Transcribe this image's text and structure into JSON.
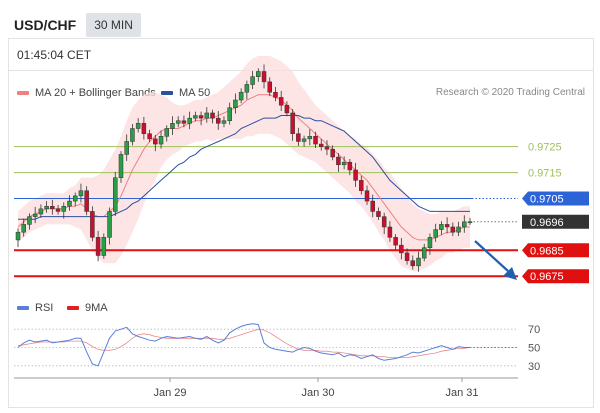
{
  "header": {
    "symbol": "USD/CHF",
    "timeframe": "30 MIN"
  },
  "panel": {
    "time": "01:45:04 CET",
    "legend": [
      {
        "label": "MA 20 + Bollinger Bands",
        "color": "#f08080"
      },
      {
        "label": "MA 50",
        "color": "#2c4f9e"
      }
    ],
    "credit": "Research © 2020 Trading Central"
  },
  "rsi_legend": [
    {
      "label": "RSI",
      "color": "#5b7fd8"
    },
    {
      "label": "9MA",
      "color": "#e02020"
    }
  ],
  "colors": {
    "resistance": "#2c64d8",
    "support": "#e01010",
    "target": "#9bc35a",
    "current": "#333333",
    "candle_up": "#2a9d46",
    "candle_down": "#c8102e",
    "band_fill": "#fcdcdc",
    "ma20": "#f08080",
    "ma50": "#2c4f9e",
    "arrow": "#1f5fae"
  },
  "chart_data": {
    "type": "candlestick",
    "title": "",
    "x_ticks": [
      "Jan 29",
      "Jan 30",
      "Jan 31"
    ],
    "y_ticks": [
      "0.9725",
      "0.9715",
      "0.9705",
      "0.9696",
      "0.9685",
      "0.9675"
    ],
    "y_range": [
      0.9672,
      0.9743
    ],
    "levels": [
      {
        "value": 0.9725,
        "label": "0.9725",
        "kind": "target"
      },
      {
        "value": 0.9715,
        "label": "0.9715",
        "kind": "target"
      },
      {
        "value": 0.9705,
        "label": "0.9705",
        "kind": "resistance"
      },
      {
        "value": 0.9696,
        "label": "0.9696",
        "kind": "current"
      },
      {
        "value": 0.9685,
        "label": "0.9685",
        "kind": "support"
      },
      {
        "value": 0.9675,
        "label": "0.9675",
        "kind": "support"
      }
    ],
    "close": [
      0.9692,
      0.9695,
      0.9698,
      0.9699,
      0.9701,
      0.9702,
      0.9701,
      0.97,
      0.9702,
      0.9704,
      0.9706,
      0.9708,
      0.97,
      0.969,
      0.9683,
      0.969,
      0.97,
      0.9713,
      0.9722,
      0.9727,
      0.9732,
      0.9734,
      0.973,
      0.9728,
      0.9726,
      0.9729,
      0.9732,
      0.9734,
      0.9735,
      0.9734,
      0.9736,
      0.9737,
      0.9736,
      0.9738,
      0.9736,
      0.9734,
      0.9735,
      0.974,
      0.9743,
      0.9746,
      0.9749,
      0.9752,
      0.9754,
      0.975,
      0.9746,
      0.9744,
      0.9741,
      0.9738,
      0.973,
      0.9727,
      0.9728,
      0.9729,
      0.9726,
      0.9725,
      0.9724,
      0.9721,
      0.9718,
      0.9719,
      0.9716,
      0.9712,
      0.9708,
      0.9704,
      0.97,
      0.9698,
      0.9694,
      0.969,
      0.9687,
      0.9684,
      0.9681,
      0.9679,
      0.9682,
      0.9686,
      0.969,
      0.9693,
      0.9695,
      0.9694,
      0.9692,
      0.9694,
      0.9696,
      0.9696
    ],
    "ma20": [
      0.9694,
      0.9696,
      0.9698,
      0.9699,
      0.97,
      0.9701,
      0.9701,
      0.9701,
      0.9701,
      0.9702,
      0.9702,
      0.9703,
      0.9701,
      0.9699,
      0.9698,
      0.9698,
      0.97,
      0.9702,
      0.9706,
      0.9711,
      0.9716,
      0.972,
      0.9724,
      0.9727,
      0.9729,
      0.9731,
      0.9732,
      0.9732,
      0.9732,
      0.9733,
      0.9734,
      0.9735,
      0.9735,
      0.9736,
      0.9736,
      0.9737,
      0.9738,
      0.9739,
      0.974,
      0.9741,
      0.9743,
      0.9744,
      0.9745,
      0.9745,
      0.9745,
      0.9744,
      0.9743,
      0.9741,
      0.9739,
      0.9736,
      0.9734,
      0.9732,
      0.973,
      0.9728,
      0.9726,
      0.9724,
      0.9722,
      0.972,
      0.9718,
      0.9716,
      0.9714,
      0.9712,
      0.9709,
      0.9706,
      0.9703,
      0.97,
      0.9697,
      0.9694,
      0.9692,
      0.969,
      0.9689,
      0.9689,
      0.9689,
      0.969,
      0.9691,
      0.9692,
      0.9692,
      0.9693,
      0.9694,
      0.9694
    ],
    "band_width": [
      0.0006,
      0.0006,
      0.0006,
      0.0006,
      0.0006,
      0.0006,
      0.0006,
      0.0006,
      0.0006,
      0.0007,
      0.0008,
      0.001,
      0.0012,
      0.0014,
      0.0016,
      0.0018,
      0.002,
      0.0022,
      0.0023,
      0.0024,
      0.0024,
      0.0023,
      0.0021,
      0.0019,
      0.0017,
      0.0014,
      0.0012,
      0.001,
      0.0009,
      0.0008,
      0.0008,
      0.0008,
      0.0008,
      0.0008,
      0.0009,
      0.0009,
      0.001,
      0.0011,
      0.0012,
      0.0013,
      0.0014,
      0.0015,
      0.0015,
      0.0015,
      0.0015,
      0.0015,
      0.0015,
      0.0015,
      0.0015,
      0.0014,
      0.0013,
      0.0012,
      0.0011,
      0.0011,
      0.0011,
      0.0011,
      0.0011,
      0.0011,
      0.0011,
      0.0012,
      0.0012,
      0.0013,
      0.0013,
      0.0014,
      0.0014,
      0.0015,
      0.0015,
      0.0015,
      0.0014,
      0.0013,
      0.0012,
      0.0011,
      0.001,
      0.0009,
      0.0009,
      0.0008,
      0.0008,
      0.0008,
      0.0008,
      0.0008
    ],
    "ma50": [
      0.9697,
      0.9697,
      0.9697,
      0.9697,
      0.9698,
      0.9698,
      0.9698,
      0.9698,
      0.9698,
      0.9698,
      0.9698,
      0.9698,
      0.9698,
      0.9698,
      0.9698,
      0.9698,
      0.9698,
      0.9699,
      0.97,
      0.9701,
      0.9703,
      0.9704,
      0.9706,
      0.9708,
      0.971,
      0.9712,
      0.9714,
      0.9716,
      0.9718,
      0.9719,
      0.9721,
      0.9722,
      0.9724,
      0.9725,
      0.9726,
      0.9727,
      0.9728,
      0.9729,
      0.973,
      0.9732,
      0.9733,
      0.9734,
      0.9735,
      0.9736,
      0.9736,
      0.9736,
      0.9737,
      0.9737,
      0.9737,
      0.9737,
      0.9736,
      0.9736,
      0.9735,
      0.9735,
      0.9734,
      0.9733,
      0.9732,
      0.9731,
      0.9729,
      0.9727,
      0.9725,
      0.9723,
      0.9721,
      0.9718,
      0.9715,
      0.9712,
      0.971,
      0.9708,
      0.9706,
      0.9704,
      0.9702,
      0.9701,
      0.97,
      0.97,
      0.97,
      0.97,
      0.97,
      0.97,
      0.97,
      0.97
    ],
    "rsi": {
      "y_ticks": [
        "70",
        "50",
        "30"
      ],
      "y_range": [
        20,
        80
      ],
      "values": [
        50,
        55,
        58,
        56,
        57,
        58,
        55,
        56,
        57,
        58,
        60,
        60,
        45,
        32,
        30,
        45,
        60,
        68,
        70,
        72,
        65,
        62,
        60,
        58,
        57,
        60,
        62,
        61,
        60,
        61,
        62,
        60,
        59,
        62,
        58,
        55,
        58,
        66,
        70,
        73,
        75,
        76,
        75,
        55,
        50,
        48,
        47,
        46,
        45,
        48,
        50,
        49,
        46,
        44,
        43,
        42,
        44,
        40,
        42,
        41,
        38,
        40,
        42,
        38,
        36,
        37,
        38,
        40,
        42,
        45,
        44,
        46,
        48,
        50,
        52,
        50,
        48,
        51,
        50,
        50
      ],
      "ma9": [
        52,
        53,
        54,
        55,
        56,
        56,
        56,
        56,
        56,
        57,
        57,
        57,
        55,
        51,
        48,
        47,
        47,
        48,
        51,
        55,
        60,
        64,
        65,
        64,
        62,
        61,
        60,
        60,
        60,
        60,
        60,
        60,
        60,
        60,
        60,
        59,
        59,
        60,
        62,
        64,
        66,
        68,
        70,
        69,
        66,
        62,
        58,
        54,
        51,
        48,
        47,
        47,
        47,
        46,
        46,
        45,
        45,
        44,
        43,
        42,
        41,
        41,
        41,
        40,
        40,
        39,
        39,
        39,
        39,
        40,
        41,
        42,
        43,
        44,
        46,
        47,
        48,
        49,
        49,
        50
      ]
    }
  }
}
